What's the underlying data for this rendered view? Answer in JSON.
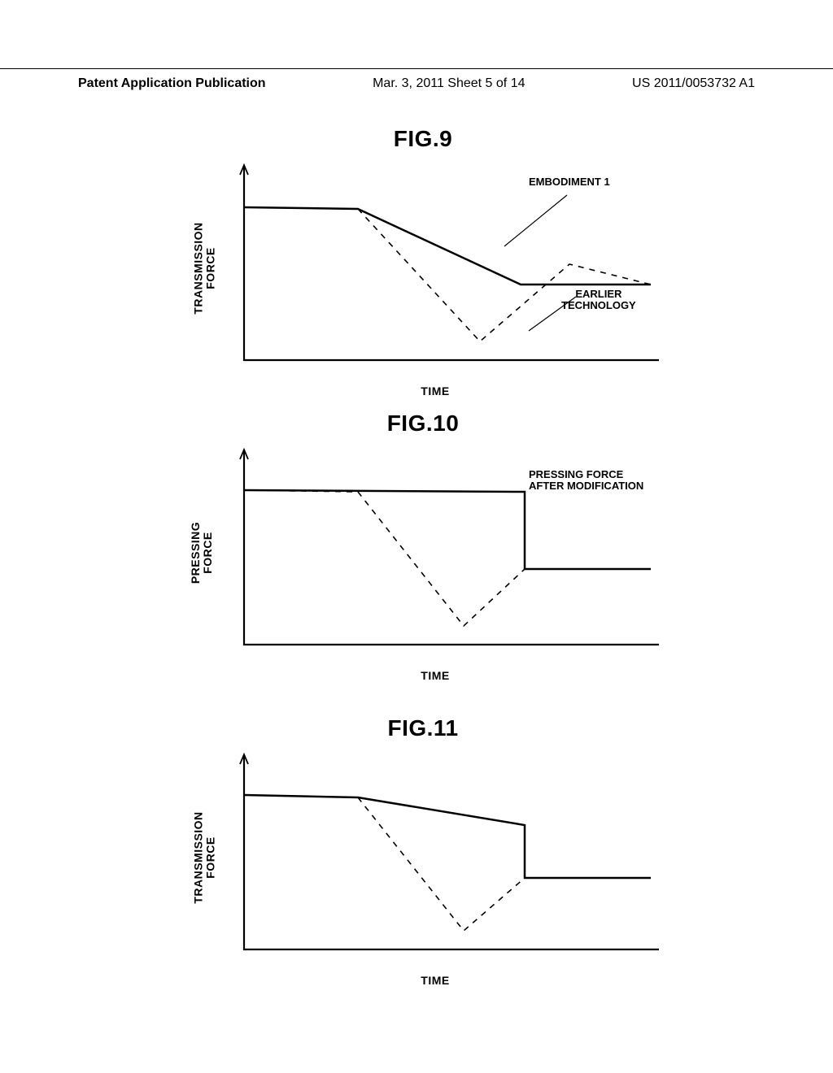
{
  "header": {
    "left": "Patent Application Publication",
    "center": "Mar. 3, 2011  Sheet 5 of 14",
    "right": "US 2011/0053732 A1"
  },
  "fig9": {
    "title": "FIG.9",
    "ylabel": "TRANSMISSION\nFORCE",
    "xlabel": "TIME",
    "annotation1": "EMBODIMENT 1",
    "annotation2": "EARLIER\nTECHNOLOGY",
    "line_color": "#000000",
    "axis_width": 2.2,
    "solid_width": 2.5,
    "dashed_width": 1.6,
    "background": "#ffffff",
    "solid_line": [
      [
        50,
        60
      ],
      [
        190,
        62
      ],
      [
        390,
        155
      ],
      [
        550,
        155
      ]
    ],
    "dashed_line": [
      [
        50,
        60
      ],
      [
        190,
        62
      ],
      [
        340,
        225
      ],
      [
        450,
        130
      ],
      [
        550,
        155
      ]
    ],
    "leader1": {
      "from": [
        370,
        108
      ],
      "to": [
        447,
        45
      ]
    },
    "leader2": {
      "from": [
        400,
        212
      ],
      "to": [
        458,
        170
      ]
    }
  },
  "fig10": {
    "title": "FIG.10",
    "ylabel": "PRESSING\nFORCE",
    "xlabel": "TIME",
    "annotation1": "PRESSING FORCE\nAFTER MODIFICATION",
    "line_color": "#000000",
    "axis_width": 2.2,
    "solid_width": 2.5,
    "dashed_width": 1.6,
    "background": "#ffffff",
    "solid_line": [
      [
        50,
        58
      ],
      [
        395,
        60
      ],
      [
        395,
        155
      ],
      [
        550,
        155
      ]
    ],
    "dashed_line": [
      [
        50,
        58
      ],
      [
        190,
        60
      ],
      [
        320,
        225
      ],
      [
        395,
        155
      ],
      [
        550,
        155
      ]
    ]
  },
  "fig11": {
    "title": "FIG.11",
    "ylabel": "TRANSMISSION\nFORCE",
    "xlabel": "TIME",
    "line_color": "#000000",
    "axis_width": 2.2,
    "solid_width": 2.5,
    "dashed_width": 1.6,
    "background": "#ffffff",
    "solid_line": [
      [
        50,
        58
      ],
      [
        190,
        61
      ],
      [
        395,
        95
      ],
      [
        395,
        160
      ],
      [
        550,
        160
      ]
    ],
    "dashed_line": [
      [
        50,
        58
      ],
      [
        190,
        61
      ],
      [
        320,
        225
      ],
      [
        395,
        160
      ],
      [
        550,
        160
      ]
    ]
  }
}
